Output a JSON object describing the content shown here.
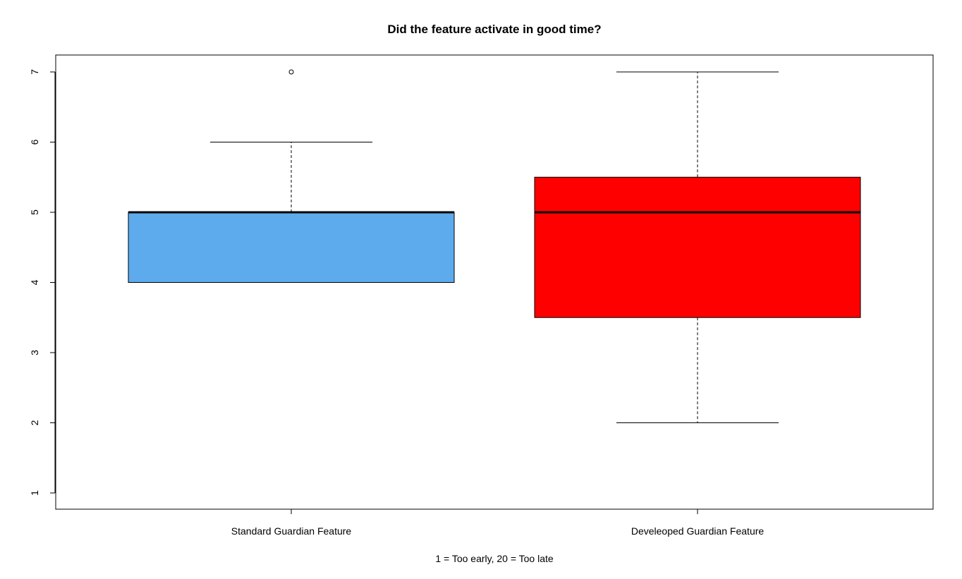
{
  "chart_data": {
    "type": "boxplot",
    "title": "Did the feature activate in good time?",
    "xlabel": "1 = Too early, 20 = Too late",
    "ylabel": "",
    "ylim": [
      1,
      7
    ],
    "yticks": [
      1,
      2,
      3,
      4,
      5,
      6,
      7
    ],
    "grid": false,
    "categories": [
      "Standard Guardian Feature",
      "Develeoped Guardian Feature"
    ],
    "series": [
      {
        "category": "Standard Guardian Feature",
        "whisker_low": 4,
        "q1": 4,
        "median": 5,
        "q3": 5,
        "whisker_high": 6,
        "outliers": [
          7
        ],
        "color": "#5DABEC"
      },
      {
        "category": "Develeoped Guardian Feature",
        "whisker_low": 2,
        "q1": 3.5,
        "median": 5,
        "q3": 5.5,
        "whisker_high": 7,
        "outliers": [],
        "color": "#FF0000"
      }
    ]
  }
}
